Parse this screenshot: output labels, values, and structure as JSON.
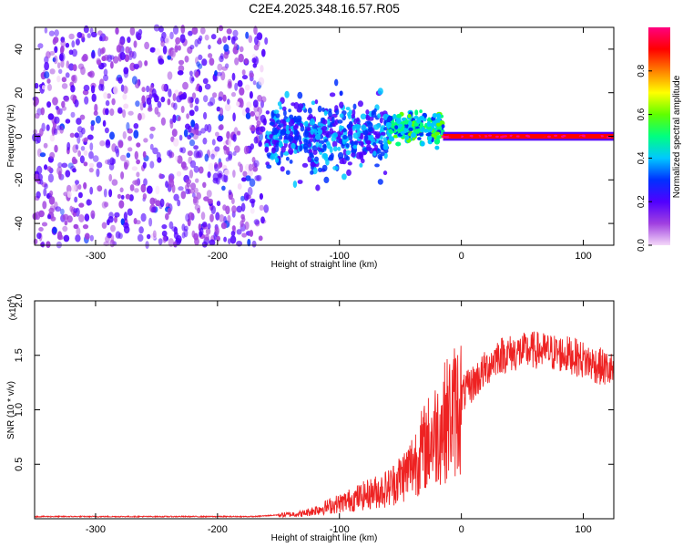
{
  "title": "C2E4.2025.348.16.57.R05",
  "chart_data": [
    {
      "type": "heatmap",
      "xlabel": "Height of straight line (km)",
      "ylabel": "Frequency (Hz)",
      "xlim": [
        -350,
        125
      ],
      "ylim": [
        -50,
        50
      ],
      "xticks": [
        -300,
        -200,
        -100,
        0,
        100
      ],
      "yticks": [
        -40,
        -20,
        0,
        20,
        40
      ],
      "colorbar": {
        "label": "Normalized spectral amplitude",
        "range": [
          0,
          1
        ],
        "ticks": [
          "0.0",
          "0.2",
          "0.4",
          "0.6",
          "0.8"
        ],
        "colors": [
          "#f4d8f8",
          "#a040e0",
          "#5000ff",
          "#0030ff",
          "#00c8ff",
          "#00ff80",
          "#60ff00",
          "#ffff00",
          "#ff8000",
          "#ff0000",
          "#ff0080"
        ]
      },
      "regions": [
        {
          "x": [
            -350,
            -160
          ],
          "freq_spread": [
            -50,
            50
          ],
          "amplitude": "low (0.05-0.25), broadband noise"
        },
        {
          "x": [
            -160,
            -60
          ],
          "freq_center": 0,
          "freq_spread": [
            -25,
            20
          ],
          "amplitude": "0.2-0.45"
        },
        {
          "x": [
            -60,
            -15
          ],
          "freq_center": 4,
          "freq_spread": [
            -5,
            10
          ],
          "amplitude": "0.3-0.6"
        },
        {
          "x": [
            -15,
            125
          ],
          "freq_center": 0,
          "freq_spread": [
            -2,
            2
          ],
          "amplitude": "0.9-1.0 narrow line"
        }
      ]
    },
    {
      "type": "line",
      "xlabel": "Height of straight line (km)",
      "ylabel": "SNR (10 * v/v)",
      "multiplier_label": "(x10",
      "multiplier_exponent": "4",
      "xlim": [
        -350,
        125
      ],
      "ylim": [
        0,
        2.0
      ],
      "xticks": [
        -300,
        -200,
        -100,
        0,
        100
      ],
      "yticks": [
        0.5,
        1.0,
        1.5,
        2.0
      ],
      "ytick_labels": [
        "0.5",
        "1.0",
        "1.5",
        "2.0"
      ],
      "series": [
        {
          "color": "#ee2222",
          "envelope": {
            "x": [
              -350,
              -170,
              -130,
              -100,
              -60,
              -45,
              -30,
              -10,
              10,
              30,
              60,
              90,
              125
            ],
            "y": [
              0.02,
              0.02,
              0.05,
              0.15,
              0.3,
              0.45,
              0.7,
              1.0,
              1.25,
              1.5,
              1.55,
              1.5,
              1.35
            ]
          }
        }
      ]
    }
  ]
}
